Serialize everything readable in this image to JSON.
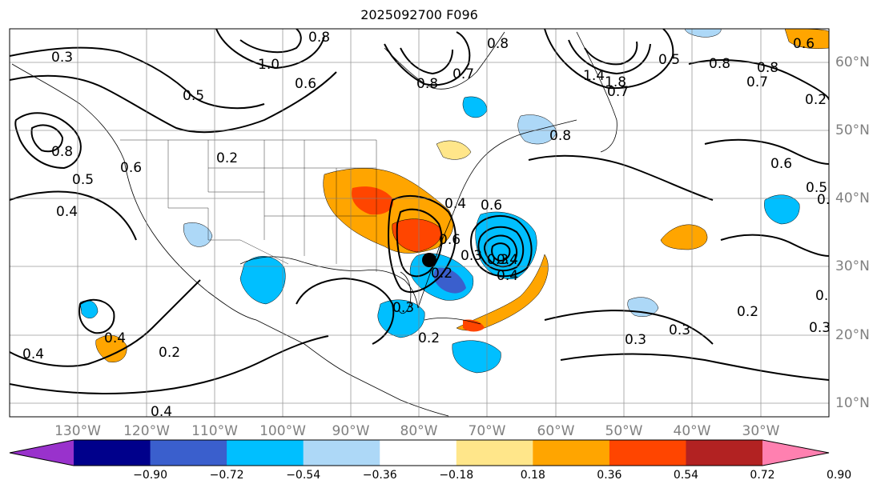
{
  "title": "2025092700 F096",
  "map": {
    "projection": "cylindrical",
    "lon_range": [
      -145,
      -20
    ],
    "lat_range": [
      7,
      65
    ],
    "lon_ticks": [
      "130°W",
      "120°W",
      "110°W",
      "100°W",
      "90°W",
      "80°W",
      "70°W",
      "60°W",
      "50°W",
      "40°W",
      "30°W"
    ],
    "lat_ticks": [
      "60°N",
      "50°N",
      "40°N",
      "30°N",
      "20°N",
      "10°N"
    ],
    "contour_labels": [
      "0.3",
      "1.0",
      "0.8",
      "0.5",
      "0.6",
      "0.8",
      "0.7",
      "0.8",
      "1.4",
      "1.8",
      "0.7",
      "0.5",
      "0.8",
      "0.7",
      "0.8",
      "0.6",
      "0.5",
      "0.8",
      "0.5",
      "0.4",
      "0.2",
      "0.6",
      "0.2",
      "0.6",
      "0.3",
      "0.2",
      "0.4",
      "0.3",
      "0.6",
      "0.4",
      "0.4",
      "0.4",
      "0.4",
      "0.2",
      "0.3",
      "0.3",
      "0.2",
      "0.3",
      "0.5",
      "0.4",
      "0.3",
      "0.6",
      "0.2",
      "0.5",
      "0.8"
    ],
    "marker": {
      "type": "storm-center",
      "lon": -80.4,
      "lat": 30.9
    }
  },
  "colorbar": {
    "colors": [
      "#9932cc",
      "#00008b",
      "#3a5fcd",
      "#00bfff",
      "#add8f7",
      "#ffffff",
      "#ffe68a",
      "#ffa500",
      "#ff4500",
      "#b22222",
      "#ff80b0"
    ],
    "tick_labels": [
      "−0.90",
      "−0.72",
      "−0.54",
      "−0.36",
      "−0.18",
      "0.18",
      "0.36",
      "0.54",
      "0.72",
      "0.90"
    ]
  }
}
